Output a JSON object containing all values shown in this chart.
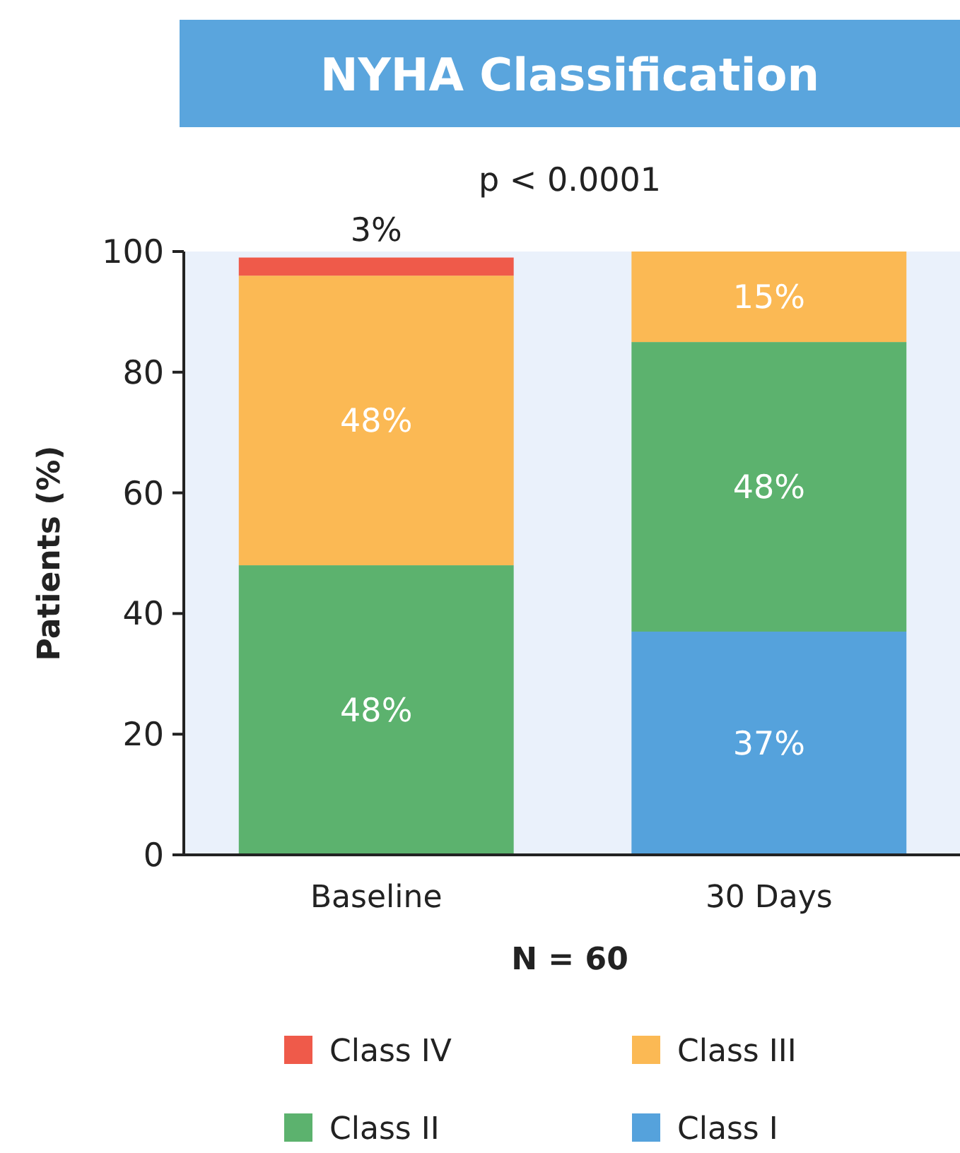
{
  "chart_data": {
    "type": "bar",
    "title": "NYHA Classification",
    "subtitle": "p < 0.0001",
    "xlabel": "N = 60",
    "ylabel": "Patients (%)",
    "categories": [
      "Baseline",
      "30 Days"
    ],
    "stacked": true,
    "ylim": [
      0,
      100
    ],
    "yticks": [
      0,
      20,
      40,
      60,
      80,
      100
    ],
    "grid": false,
    "legend": "bottom",
    "series": [
      {
        "name": "Class I",
        "color": "#55a2dc",
        "values": [
          0,
          37
        ],
        "value_labels": [
          null,
          "37%"
        ]
      },
      {
        "name": "Class II",
        "color": "#5cb26e",
        "values": [
          48,
          48
        ],
        "value_labels": [
          "48%",
          "48%"
        ]
      },
      {
        "name": "Class III",
        "color": "#fbb954",
        "values": [
          48,
          15
        ],
        "value_labels": [
          "48%",
          "15%"
        ]
      },
      {
        "name": "Class IV",
        "color": "#ef5a4a",
        "values": [
          3,
          0
        ],
        "value_labels": [
          "3%",
          null
        ]
      }
    ]
  }
}
